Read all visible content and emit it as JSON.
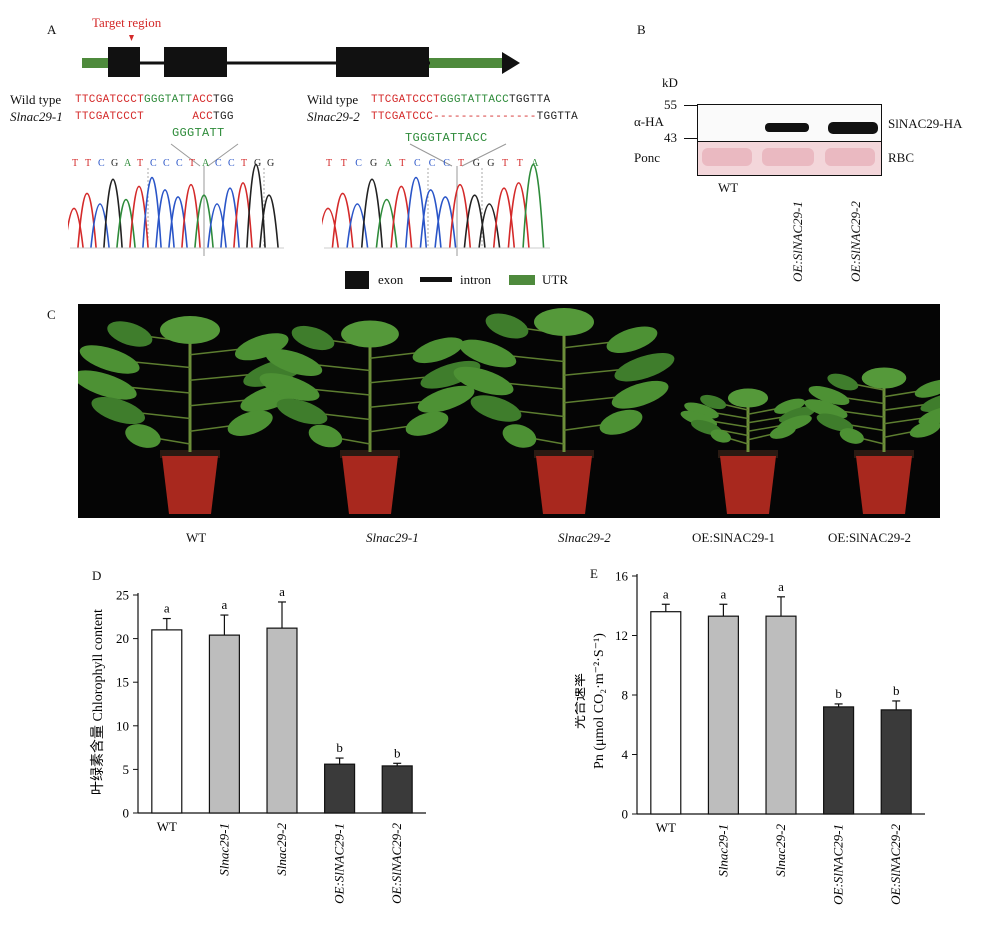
{
  "panels": {
    "a": "A",
    "b": "B",
    "c": "C",
    "d": "D",
    "e": "E"
  },
  "panel_a": {
    "target_label": "Target region",
    "left": {
      "row1_label": "Wild type",
      "row2_label": "Slnac29-1",
      "wt_seq_red1": "TTCGATCCCT",
      "wt_seq_green": "GGGTATT",
      "wt_seq_red2": "ACC",
      "wt_seq_black": "TGG",
      "mut_seq_red1": "TTCGATCCCT",
      "mut_seq_red2": "ACC",
      "mut_seq_black": "TGG",
      "deleted": "GGGTATT",
      "trace_letters": "TTCGATCCCTACCTGG"
    },
    "right": {
      "row1_label": "Wild type",
      "row2_label": "Slnac29-2",
      "wt_seq_red1": "TTCGATCCCT",
      "wt_seq_green": "GGGTATTACC",
      "wt_seq_black": "TGGTTA",
      "mut_seq_red1": "TTCGATCCC",
      "mut_seq_dash": "---------------",
      "mut_seq_black": "TGGTTA",
      "deleted": "TGGGTATTACC",
      "trace_letters": "TTCGATCCCTGGTTA"
    },
    "legend": [
      {
        "label": "exon",
        "color": "#111111"
      },
      {
        "label": "intron",
        "color": "#111111"
      },
      {
        "label": "UTR",
        "color": "#4e8a3c"
      }
    ]
  },
  "panel_b": {
    "kd_label": "kD",
    "marker_55": "55",
    "marker_43": "43",
    "row1_label": "α-HA",
    "row2_label": "Ponc",
    "band1_label": "SlNAC29-HA",
    "band2_label": "RBC",
    "lanes": [
      "WT",
      "OE:SlNAC29-1",
      "OE:SlNAC29-2"
    ]
  },
  "panel_c": {
    "captions": [
      "WT",
      "Slnac29-1",
      "Slnac29-2",
      "OE:SlNAC29-1",
      "OE:SlNAC29-2"
    ]
  },
  "chart_data": [
    {
      "type": "bar",
      "panel": "D",
      "ylabel": "叶绿素含量 Chlorophyll content",
      "ylim": [
        0,
        25
      ],
      "yticks": [
        0,
        5,
        10,
        15,
        20,
        25
      ],
      "categories": [
        "WT",
        "Slnac29-1",
        "Slnac29-2",
        "OE:SlNAC29-1",
        "OE:SlNAC29-2"
      ],
      "values": [
        21.0,
        20.4,
        21.2,
        5.6,
        5.4
      ],
      "errors": [
        1.3,
        2.3,
        3.0,
        0.7,
        0.3
      ],
      "significance": [
        "a",
        "a",
        "a",
        "b",
        "b"
      ],
      "colors": [
        "#ffffff",
        "#bdbdbd",
        "#bdbdbd",
        "#3a3a3a",
        "#3a3a3a"
      ]
    },
    {
      "type": "bar",
      "panel": "E",
      "ylabel_cn": "光合速率",
      "ylabel": "Pn (μmol CO₂·m⁻²·S⁻¹)",
      "ylim": [
        0,
        16
      ],
      "yticks": [
        0,
        4,
        8,
        12,
        16
      ],
      "categories": [
        "WT",
        "Slnac29-1",
        "Slnac29-2",
        "OE:SlNAC29-1",
        "OE:SlNAC29-2"
      ],
      "values": [
        13.6,
        13.3,
        13.3,
        7.2,
        7.0
      ],
      "errors": [
        0.5,
        0.8,
        1.3,
        0.2,
        0.6
      ],
      "significance": [
        "a",
        "a",
        "a",
        "b",
        "b"
      ],
      "colors": [
        "#ffffff",
        "#bdbdbd",
        "#bdbdbd",
        "#3a3a3a",
        "#3a3a3a"
      ]
    }
  ]
}
